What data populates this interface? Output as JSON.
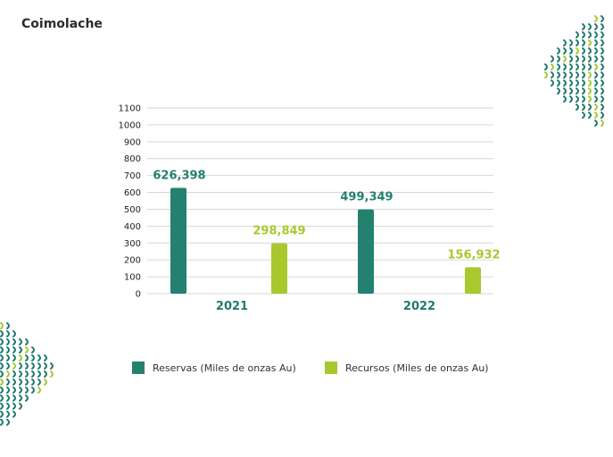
{
  "page": {
    "title": "Coimolache"
  },
  "colors": {
    "reservas": "#24806f",
    "recursos": "#a8c82e",
    "grid": "#d6d6d6",
    "deco": "#1f7a6d",
    "deco_light": "#a8c82e"
  },
  "decor": {
    "pattern_icon": "chevron-dot-pattern-icon"
  },
  "chart_data": {
    "type": "bar",
    "categories": [
      "2021",
      "2022"
    ],
    "series": [
      {
        "name": "Reservas (Miles de onzas Au)",
        "values": [
          626.398,
          499.349
        ],
        "labels": [
          "626,398",
          "499,349"
        ],
        "color": "#24806f"
      },
      {
        "name": "Recursos (Miles de onzas Au)",
        "values": [
          298.849,
          156.932
        ],
        "labels": [
          "298,849",
          "156,932"
        ],
        "color": "#a8c82e"
      }
    ],
    "yticks": [
      "0",
      "100",
      "200",
      "300",
      "400",
      "500",
      "600",
      "700",
      "800",
      "900",
      "1000",
      "1100"
    ],
    "ylim": [
      0,
      1100
    ],
    "grid": true,
    "legend_position": "bottom"
  }
}
